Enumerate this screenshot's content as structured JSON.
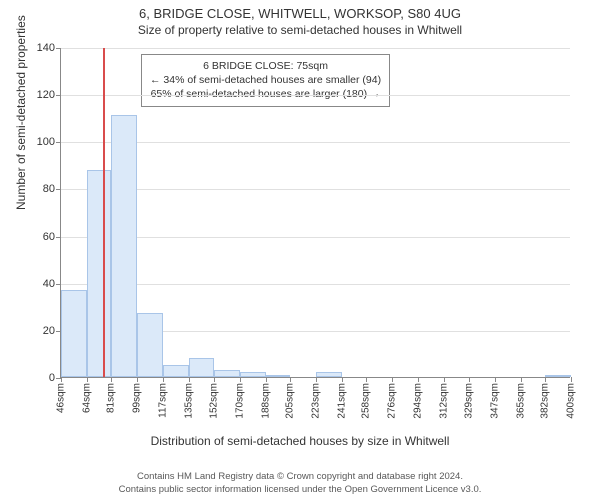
{
  "title": "6, BRIDGE CLOSE, WHITWELL, WORKSOP, S80 4UG",
  "subtitle": "Size of property relative to semi-detached houses in Whitwell",
  "chart": {
    "type": "histogram",
    "ylim": [
      0,
      140
    ],
    "yticks": [
      0,
      20,
      40,
      60,
      80,
      100,
      120,
      140
    ],
    "ylabel": "Number of semi-detached properties",
    "xlabel": "Distribution of semi-detached houses by size in Whitwell",
    "xtick_labels": [
      "46sqm",
      "64sqm",
      "81sqm",
      "99sqm",
      "117sqm",
      "135sqm",
      "152sqm",
      "170sqm",
      "188sqm",
      "205sqm",
      "223sqm",
      "241sqm",
      "258sqm",
      "276sqm",
      "294sqm",
      "312sqm",
      "329sqm",
      "347sqm",
      "365sqm",
      "382sqm",
      "400sqm"
    ],
    "x_min": 46,
    "x_max": 400,
    "bars": [
      {
        "x0": 46,
        "x1": 64,
        "y": 37
      },
      {
        "x0": 64,
        "x1": 81,
        "y": 88
      },
      {
        "x0": 81,
        "x1": 99,
        "y": 111
      },
      {
        "x0": 99,
        "x1": 117,
        "y": 27
      },
      {
        "x0": 117,
        "x1": 135,
        "y": 5
      },
      {
        "x0": 135,
        "x1": 152,
        "y": 8
      },
      {
        "x0": 152,
        "x1": 170,
        "y": 3
      },
      {
        "x0": 170,
        "x1": 188,
        "y": 2
      },
      {
        "x0": 188,
        "x1": 205,
        "y": 1
      },
      {
        "x0": 223,
        "x1": 241,
        "y": 2
      },
      {
        "x0": 382,
        "x1": 400,
        "y": 1
      }
    ],
    "bar_fill": "#dbe9f9",
    "bar_stroke": "#a9c5e8",
    "grid_color": "#e0e0e0",
    "axis_color": "#888888",
    "marker_x": 75,
    "marker_color": "#d94c4c",
    "background_color": "#ffffff"
  },
  "info_box": {
    "line1": "6 BRIDGE CLOSE: 75sqm",
    "line2": "← 34% of semi-detached houses are smaller (94)",
    "line3": "65% of semi-detached houses are larger (180) →"
  },
  "footer": {
    "line1": "Contains HM Land Registry data © Crown copyright and database right 2024.",
    "line2": "Contains public sector information licensed under the Open Government Licence v3.0."
  }
}
